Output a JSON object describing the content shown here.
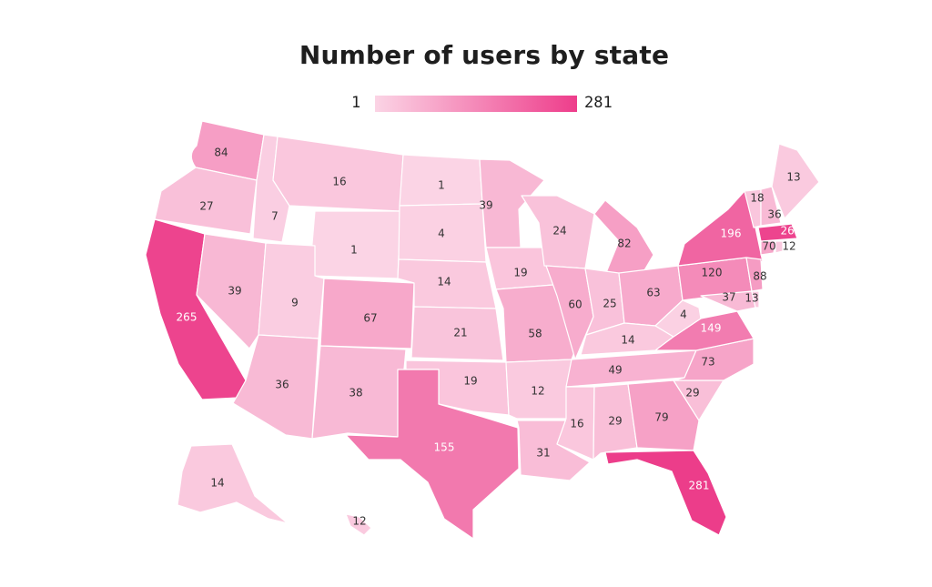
{
  "title": "Number of users by state",
  "legend": {
    "min_label": "1",
    "max_label": "281",
    "color_low": "#fbd4e5",
    "color_high": "#ee3d8b"
  },
  "chart_data": {
    "type": "choropleth",
    "title": "Number of users by state",
    "range": [
      1,
      281
    ],
    "states": [
      {
        "state": "WA",
        "value": 84
      },
      {
        "state": "OR",
        "value": 27
      },
      {
        "state": "CA",
        "value": 265
      },
      {
        "state": "ID",
        "value": 7
      },
      {
        "state": "NV",
        "value": 39
      },
      {
        "state": "MT",
        "value": 16
      },
      {
        "state": "WY",
        "value": 1
      },
      {
        "state": "UT",
        "value": 9
      },
      {
        "state": "AZ",
        "value": 36
      },
      {
        "state": "CO",
        "value": 67
      },
      {
        "state": "NM",
        "value": 38
      },
      {
        "state": "ND",
        "value": 1
      },
      {
        "state": "SD",
        "value": 4
      },
      {
        "state": "NE",
        "value": 14
      },
      {
        "state": "KS",
        "value": 21
      },
      {
        "state": "OK",
        "value": 19
      },
      {
        "state": "TX",
        "value": 155
      },
      {
        "state": "MN",
        "value": 39
      },
      {
        "state": "IA",
        "value": 19
      },
      {
        "state": "MO",
        "value": 58
      },
      {
        "state": "AR",
        "value": 12
      },
      {
        "state": "LA",
        "value": 31
      },
      {
        "state": "WI",
        "value": 24
      },
      {
        "state": "IL",
        "value": 60
      },
      {
        "state": "MI",
        "value": 82
      },
      {
        "state": "IN",
        "value": 25
      },
      {
        "state": "OH",
        "value": 63
      },
      {
        "state": "KY",
        "value": 14
      },
      {
        "state": "TN",
        "value": 49
      },
      {
        "state": "MS",
        "value": 16
      },
      {
        "state": "AL",
        "value": 29
      },
      {
        "state": "GA",
        "value": 79
      },
      {
        "state": "FL",
        "value": 281
      },
      {
        "state": "SC",
        "value": 29
      },
      {
        "state": "NC",
        "value": 73
      },
      {
        "state": "VA",
        "value": 149
      },
      {
        "state": "WV",
        "value": 4
      },
      {
        "state": "PA",
        "value": 120
      },
      {
        "state": "NY",
        "value": 196
      },
      {
        "state": "NJ",
        "value": 88
      },
      {
        "state": "MD",
        "value": 37
      },
      {
        "state": "DE",
        "value": 13
      },
      {
        "state": "CT",
        "value": 70
      },
      {
        "state": "RI",
        "value": 12
      },
      {
        "state": "MA",
        "value": 266
      },
      {
        "state": "VT",
        "value": 18
      },
      {
        "state": "NH",
        "value": 36
      },
      {
        "state": "ME",
        "value": 13
      },
      {
        "state": "AK",
        "value": 14
      },
      {
        "state": "HI",
        "value": 12
      }
    ]
  }
}
